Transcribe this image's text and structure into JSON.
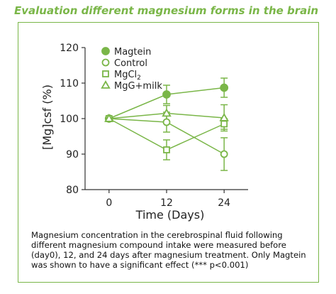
{
  "title": "Evaluation different magnesium forms in the brain",
  "caption": "Magnesium concentration in the cerebrospinal fluid following different magnesium compound intake were measured before (day0), 12, and 24 days after magnesium treatment. Only Magtein was shown to have a significant effect (*** p<0.001)",
  "colors": {
    "accent": "#7ab648",
    "axis": "#333333"
  },
  "chart_data": {
    "type": "line",
    "xlabel": "Time (Days)",
    "ylabel": "[Mg]csf (%)",
    "x": [
      0,
      12,
      24
    ],
    "xlim": [
      -5,
      29
    ],
    "ylim": [
      80,
      120
    ],
    "yticks": [
      80,
      90,
      100,
      110,
      120
    ],
    "xticks": [
      0,
      12,
      24
    ],
    "legend_position": "top-left",
    "series": [
      {
        "name": "Magtein",
        "marker": "filled-circle",
        "values": [
          100,
          106.8,
          108.7
        ],
        "errors": [
          0,
          2.6,
          2.7
        ]
      },
      {
        "name": "Control",
        "marker": "open-circle",
        "values": [
          100,
          99,
          90
        ],
        "errors": [
          0,
          2.8,
          4.6
        ]
      },
      {
        "name": "MgCl",
        "name_sub": "2",
        "marker": "open-square",
        "values": [
          100,
          91.2,
          98.5
        ],
        "errors": [
          0,
          2.8,
          1.5
        ]
      },
      {
        "name": "MgG+milk",
        "marker": "open-triangle",
        "values": [
          100,
          101.5,
          100.2
        ],
        "errors": [
          0,
          2.2,
          3.7
        ]
      }
    ]
  }
}
